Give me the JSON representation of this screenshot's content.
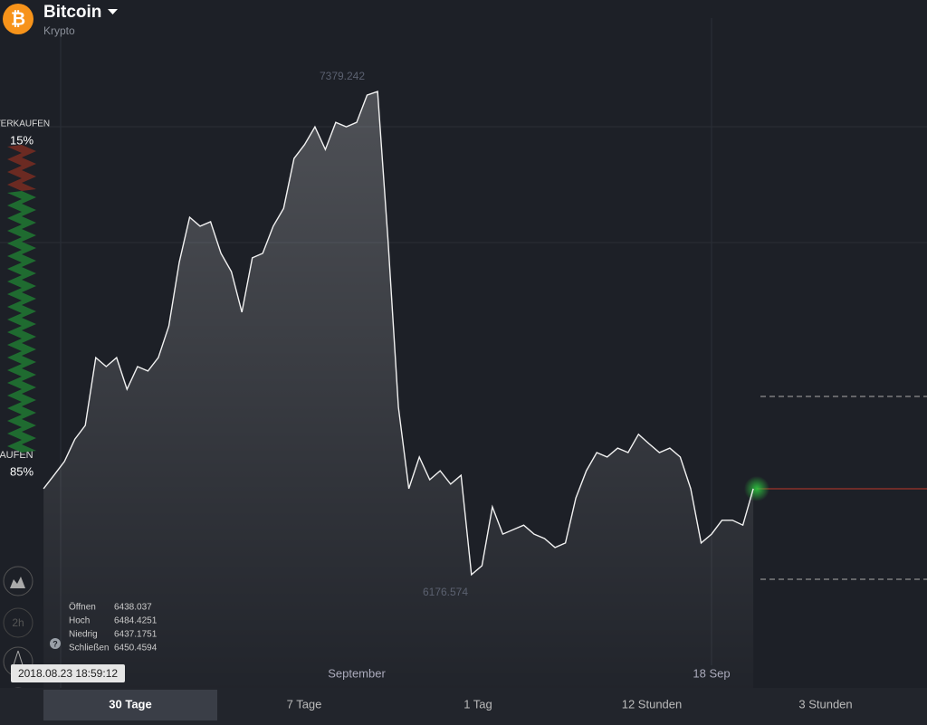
{
  "header": {
    "icon": "₿",
    "title": "Bitcoin",
    "subtitle": "Krypto"
  },
  "sentiment": {
    "sell_label": "VERKAUFEN",
    "sell": {
      "value": 15,
      "label": "15%"
    },
    "buy_label": "KAUFEN",
    "buy": {
      "value": 85,
      "label": "85%"
    }
  },
  "price_chart": {
    "high": 7379.242,
    "low": 6176.574,
    "values": [
      6400,
      6433,
      6467,
      6522,
      6556,
      6723,
      6701,
      6723,
      6645,
      6701,
      6690,
      6723,
      6801,
      6958,
      7069,
      7047,
      7058,
      6980,
      6935,
      6835,
      6969,
      6980,
      7047,
      7091,
      7214,
      7248,
      7292,
      7236,
      7303,
      7292,
      7303,
      7370,
      7379,
      7013,
      6601,
      6400,
      6478,
      6422,
      6444,
      6411,
      6433,
      6188,
      6210,
      6355,
      6288,
      6299,
      6310,
      6288,
      6277,
      6255,
      6266,
      6377,
      6444,
      6489,
      6478,
      6500,
      6489,
      6534,
      6511,
      6489,
      6500,
      6478,
      6400,
      6266,
      6288,
      6322,
      6322,
      6310,
      6400
    ],
    "categories": [
      null,
      null,
      null,
      null,
      null,
      null,
      null,
      null,
      null,
      null,
      null,
      null,
      null,
      null,
      null,
      null,
      null,
      null,
      null,
      null,
      null,
      null,
      null,
      null,
      null,
      null,
      null,
      null,
      null,
      null,
      "September",
      null,
      null,
      null,
      null,
      null,
      null,
      null,
      null,
      null,
      null,
      null,
      null,
      null,
      null,
      null,
      null,
      null,
      null,
      null,
      null,
      null,
      null,
      null,
      null,
      null,
      null,
      null,
      null,
      null,
      null,
      null,
      null,
      null,
      "18 Sep",
      null,
      null,
      null,
      null
    ]
  },
  "ohlc": {
    "rows": [
      [
        "Öffnen",
        "6438.037"
      ],
      [
        "Hoch",
        "6484.4251"
      ],
      [
        "Niedrig",
        "6437.1751"
      ],
      [
        "Schließen",
        "6450.4594"
      ]
    ],
    "help": "?"
  },
  "timestamp": "2018.08.23 18:59:12",
  "tools": {
    "period": "2h"
  },
  "timeframes": [
    "30 Tage",
    "7 Tage",
    "1 Tag",
    "12 Stunden",
    "3 Stunden"
  ]
}
